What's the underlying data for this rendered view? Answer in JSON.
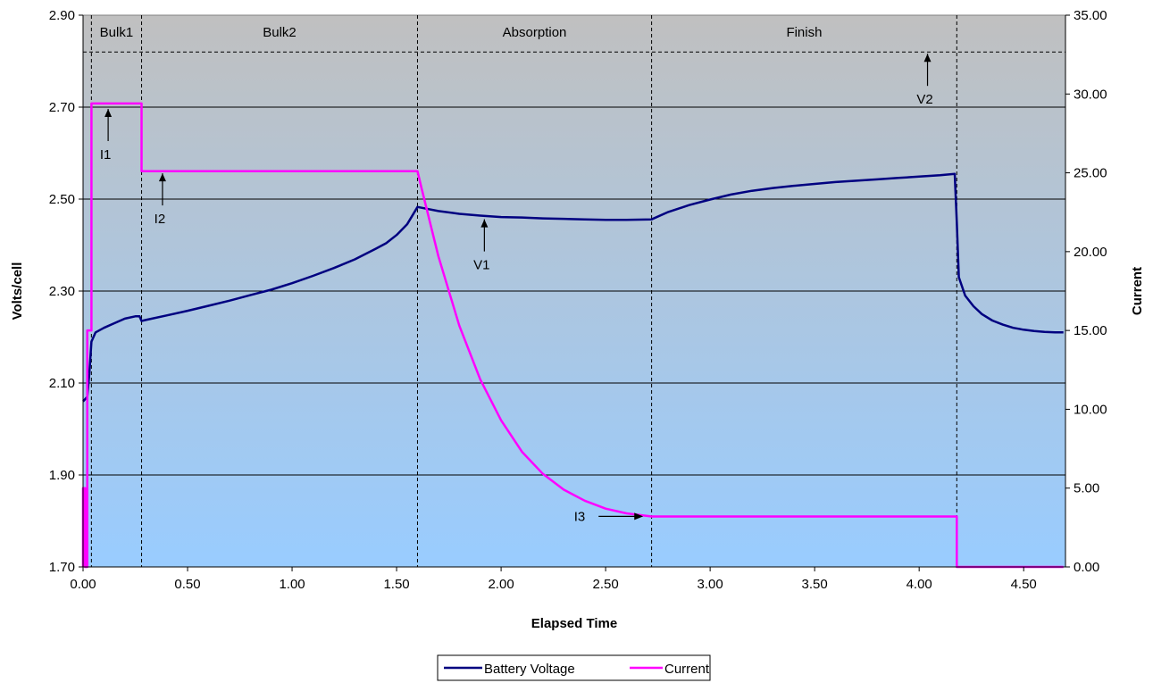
{
  "chart_data": {
    "type": "line",
    "title": "",
    "xlabel": "Elapsed Time",
    "ylabel": "Volts/cell",
    "y2label": "Current",
    "xlim": [
      0,
      4.7
    ],
    "ylim": [
      1.7,
      2.9
    ],
    "y2lim": [
      0,
      35
    ],
    "x_ticks": [
      "0.00",
      "0.50",
      "1.00",
      "1.50",
      "2.00",
      "2.50",
      "3.00",
      "3.50",
      "4.00",
      "4.50"
    ],
    "y_ticks": [
      "1.70",
      "1.90",
      "2.10",
      "2.30",
      "2.50",
      "2.70",
      "2.90"
    ],
    "y2_ticks": [
      "0.00",
      "5.00",
      "10.00",
      "15.00",
      "20.00",
      "25.00",
      "30.00",
      "35.00"
    ],
    "grid": "horizontal",
    "colors": {
      "voltage": "#000080",
      "current": "#ff00ff",
      "plot_top": "#c0c0c0",
      "plot_bottom": "#99ccff"
    },
    "phase_boundaries": [
      0.04,
      0.28,
      1.6,
      2.72,
      4.18
    ],
    "setpoint_line_y": 2.82,
    "phases": [
      {
        "label": "Bulk1",
        "x": 0.16
      },
      {
        "label": "Bulk2",
        "x": 0.94
      },
      {
        "label": "Absorption",
        "x": 2.16
      },
      {
        "label": "Finish",
        "x": 3.45
      }
    ],
    "annotations": [
      {
        "label": "I1",
        "x": 0.12,
        "y": 2.7
      },
      {
        "label": "I2",
        "x": 0.38,
        "y": 2.56
      },
      {
        "label": "V1",
        "x": 1.92,
        "y": 2.46
      },
      {
        "label": "V2",
        "x": 4.04,
        "y": 2.82
      },
      {
        "label": "I3",
        "x": 2.68,
        "y": 1.81
      }
    ],
    "series": [
      {
        "name": "Battery Voltage",
        "axis": "left",
        "x": [
          0.0,
          0.02,
          0.03,
          0.04,
          0.06,
          0.1,
          0.15,
          0.2,
          0.25,
          0.27,
          0.28,
          0.3,
          0.4,
          0.5,
          0.6,
          0.7,
          0.8,
          0.9,
          1.0,
          1.1,
          1.2,
          1.3,
          1.4,
          1.45,
          1.5,
          1.55,
          1.6,
          1.7,
          1.8,
          1.9,
          2.0,
          2.1,
          2.2,
          2.3,
          2.4,
          2.5,
          2.6,
          2.72,
          2.8,
          2.9,
          3.0,
          3.1,
          3.2,
          3.3,
          3.4,
          3.5,
          3.6,
          3.7,
          3.8,
          3.9,
          4.0,
          4.1,
          4.17,
          4.18,
          4.19,
          4.22,
          4.26,
          4.3,
          4.35,
          4.4,
          4.45,
          4.5,
          4.55,
          4.6,
          4.65,
          4.69
        ],
        "values": [
          2.06,
          2.07,
          2.12,
          2.19,
          2.21,
          2.22,
          2.23,
          2.24,
          2.245,
          2.245,
          2.235,
          2.237,
          2.247,
          2.257,
          2.268,
          2.279,
          2.291,
          2.303,
          2.317,
          2.333,
          2.35,
          2.369,
          2.392,
          2.404,
          2.422,
          2.445,
          2.483,
          2.474,
          2.468,
          2.464,
          2.461,
          2.46,
          2.458,
          2.457,
          2.456,
          2.455,
          2.455,
          2.456,
          2.472,
          2.487,
          2.499,
          2.51,
          2.518,
          2.524,
          2.529,
          2.533,
          2.537,
          2.54,
          2.543,
          2.546,
          2.549,
          2.552,
          2.555,
          2.45,
          2.33,
          2.29,
          2.267,
          2.25,
          2.236,
          2.227,
          2.22,
          2.216,
          2.213,
          2.211,
          2.21,
          2.21
        ]
      },
      {
        "name": "Current",
        "axis": "right",
        "x": [
          0.0,
          0.0,
          0.01,
          0.01,
          0.02,
          0.02,
          0.035,
          0.04,
          0.04,
          0.28,
          0.28,
          1.6,
          1.62,
          1.7,
          1.8,
          1.9,
          2.0,
          2.1,
          2.2,
          2.3,
          2.4,
          2.5,
          2.6,
          2.72,
          2.8,
          3.0,
          3.2,
          3.4,
          3.6,
          3.8,
          4.0,
          4.18,
          4.18,
          4.69
        ],
        "values": [
          0.0,
          5.0,
          5.0,
          0.0,
          0.0,
          15.0,
          15.0,
          15.0,
          29.4,
          29.4,
          25.1,
          25.1,
          24.0,
          19.7,
          15.3,
          11.9,
          9.3,
          7.3,
          5.9,
          4.9,
          4.2,
          3.7,
          3.4,
          3.2,
          3.2,
          3.2,
          3.2,
          3.2,
          3.2,
          3.2,
          3.2,
          3.2,
          0.0,
          0.0
        ]
      }
    ]
  }
}
